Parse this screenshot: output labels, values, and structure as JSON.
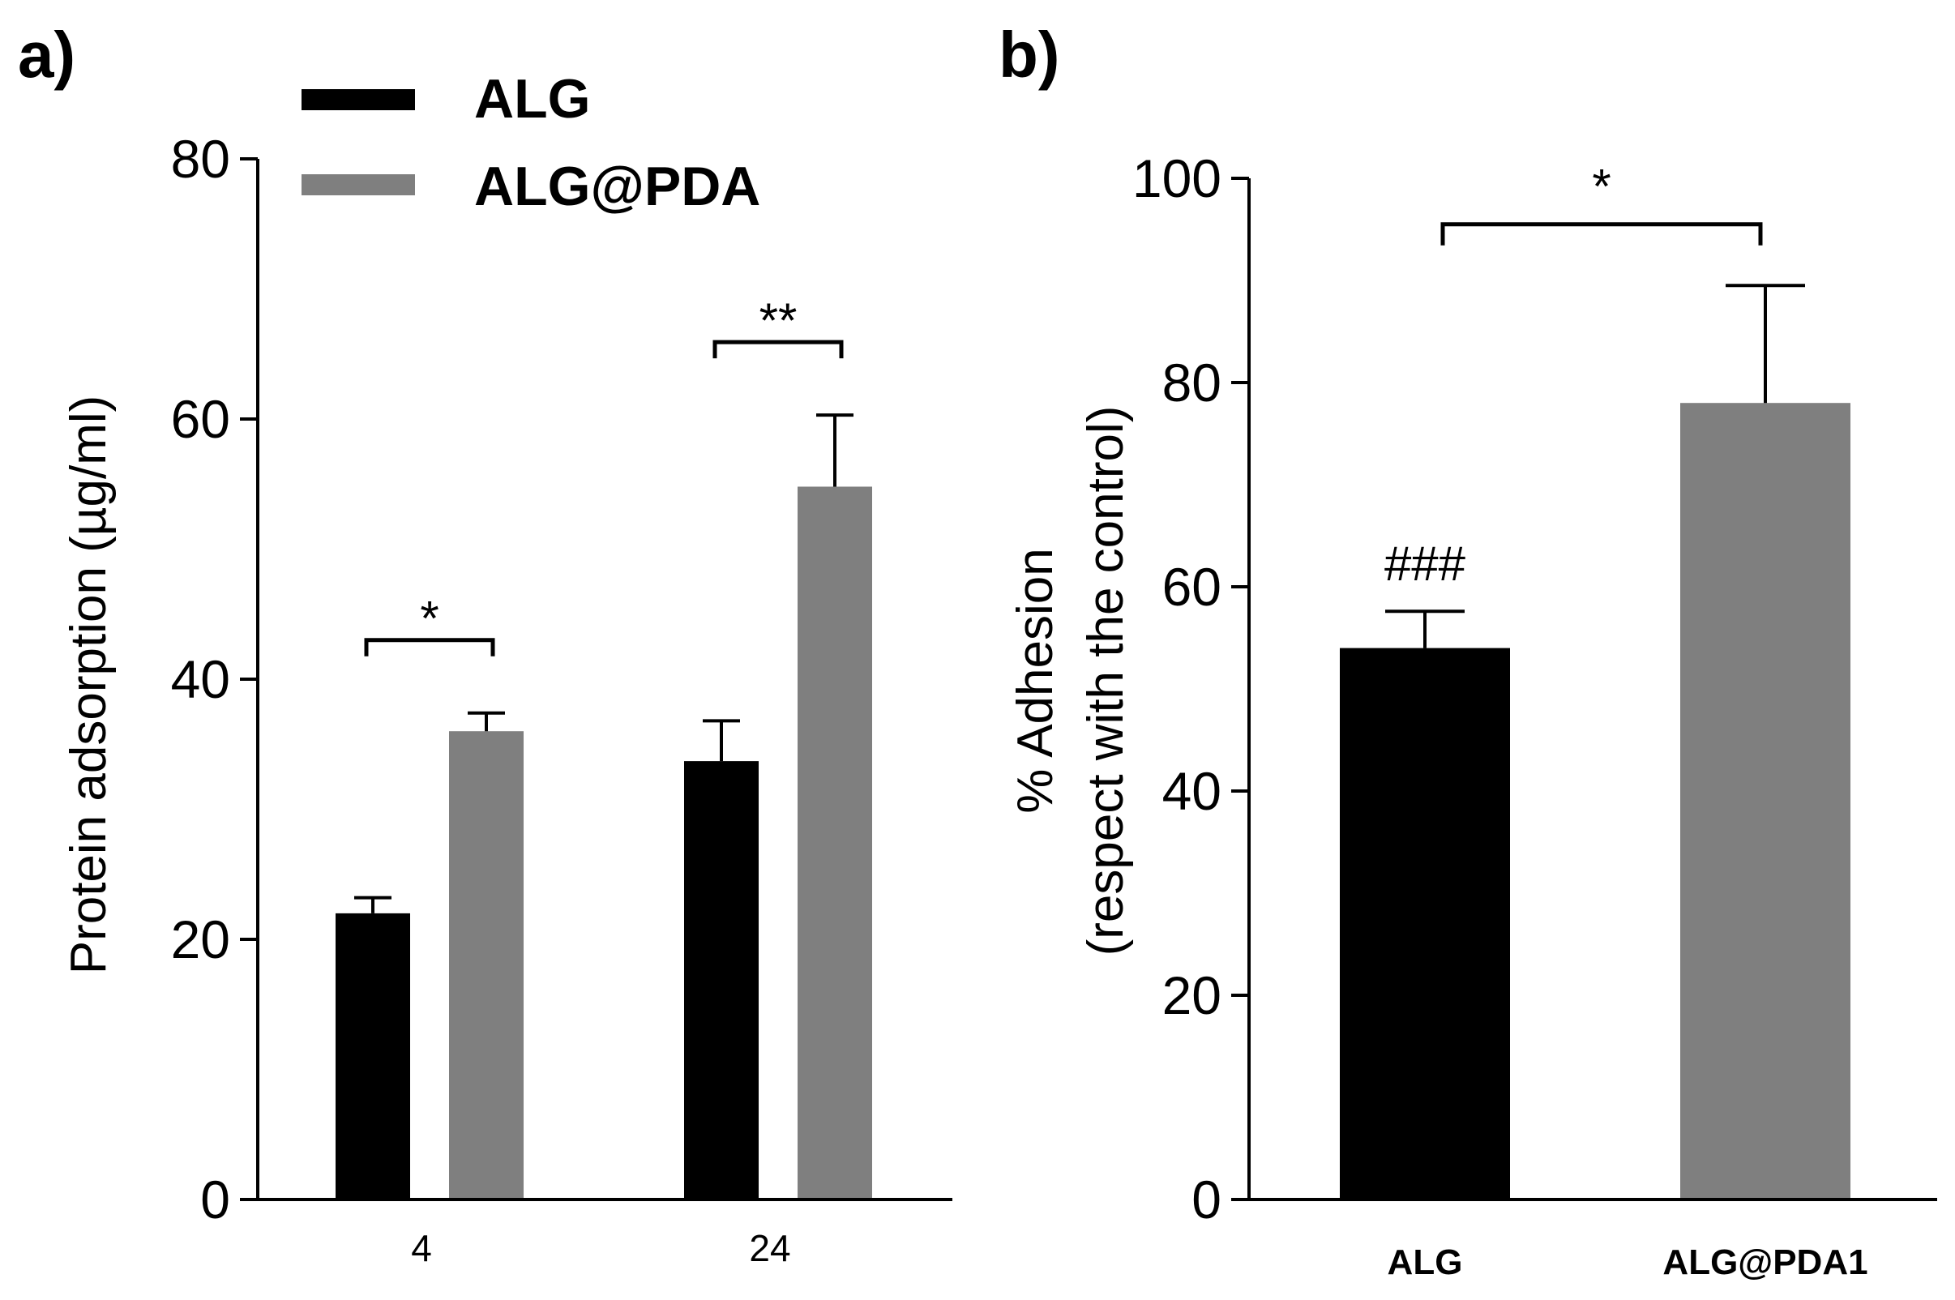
{
  "chart_data": [
    {
      "panel": "a)",
      "type": "bar",
      "categories": [
        "4",
        "24"
      ],
      "series": [
        {
          "name": "ALG",
          "color": "#000000",
          "values": [
            22,
            33.7
          ],
          "errors": [
            1.2,
            3.1
          ]
        },
        {
          "name": "ALG@PDA",
          "color": "#7f7f7f",
          "values": [
            36,
            54.8
          ],
          "errors": [
            1.4,
            5.5
          ]
        }
      ],
      "ylabel": "Protein adsorption (µg/ml)",
      "xlabel": "",
      "ylim": [
        0,
        80
      ],
      "yticks": [
        "0",
        "20",
        "40",
        "60",
        "80"
      ],
      "legend_position": "top-left",
      "significance": [
        {
          "category": "4",
          "label": "*"
        },
        {
          "category": "24",
          "label": "**"
        }
      ]
    },
    {
      "panel": "b)",
      "type": "bar",
      "categories": [
        "ALG",
        "ALG@PDA1"
      ],
      "series": [
        {
          "name": "% Adhesion",
          "colors": [
            "#000000",
            "#7f7f7f"
          ],
          "values": [
            54,
            78
          ],
          "errors": [
            3.6,
            11.5
          ]
        }
      ],
      "ylabel_line1": "% Adhesion",
      "ylabel_line2": "(respect with the control)",
      "xlabel": "",
      "ylim": [
        0,
        100
      ],
      "yticks": [
        "0",
        "20",
        "40",
        "60",
        "80",
        "100"
      ],
      "bar_annotations": [
        {
          "category": "ALG",
          "label": "###"
        }
      ],
      "significance": [
        {
          "from": "ALG",
          "to": "ALG@PDA1",
          "label": "*"
        }
      ]
    }
  ]
}
